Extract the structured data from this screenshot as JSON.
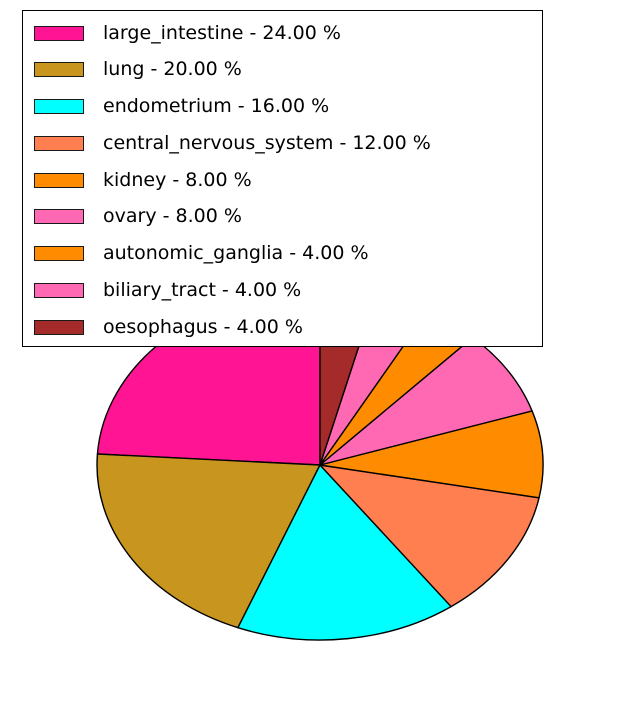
{
  "figure": {
    "background_color": "#ffffff",
    "outline_color": "#000000"
  },
  "chart_data": {
    "type": "pie",
    "title": "",
    "start_angle": 90,
    "direction": "counterclockwise",
    "legend_position": "upper left",
    "legend_border_color": "#000000",
    "legend_background": "#ffffff",
    "slices": [
      {
        "label": "large_intestine",
        "value": 24.0,
        "legend_text": "large_intestine - 24.00 %",
        "color": "#FF1493"
      },
      {
        "label": "lung",
        "value": 20.0,
        "legend_text": "lung - 20.00 %",
        "color": "#C8961E"
      },
      {
        "label": "endometrium",
        "value": 16.0,
        "legend_text": "endometrium - 16.00 %",
        "color": "#00FFFF"
      },
      {
        "label": "central_nervous_system",
        "value": 12.0,
        "legend_text": "central_nervous_system - 12.00 %",
        "color": "#FF7F50"
      },
      {
        "label": "kidney",
        "value": 8.0,
        "legend_text": "kidney - 8.00 %",
        "color": "#FF8C00"
      },
      {
        "label": "ovary",
        "value": 8.0,
        "legend_text": "ovary - 8.00 %",
        "color": "#FF69B4"
      },
      {
        "label": "autonomic_ganglia",
        "value": 4.0,
        "legend_text": "autonomic_ganglia - 4.00 %",
        "color": "#FF8C00"
      },
      {
        "label": "biliary_tract",
        "value": 4.0,
        "legend_text": "biliary_tract - 4.00 %",
        "color": "#FF69B4"
      },
      {
        "label": "oesophagus",
        "value": 4.0,
        "legend_text": "oesophagus - 4.00 %",
        "color": "#A52A2A"
      }
    ]
  }
}
